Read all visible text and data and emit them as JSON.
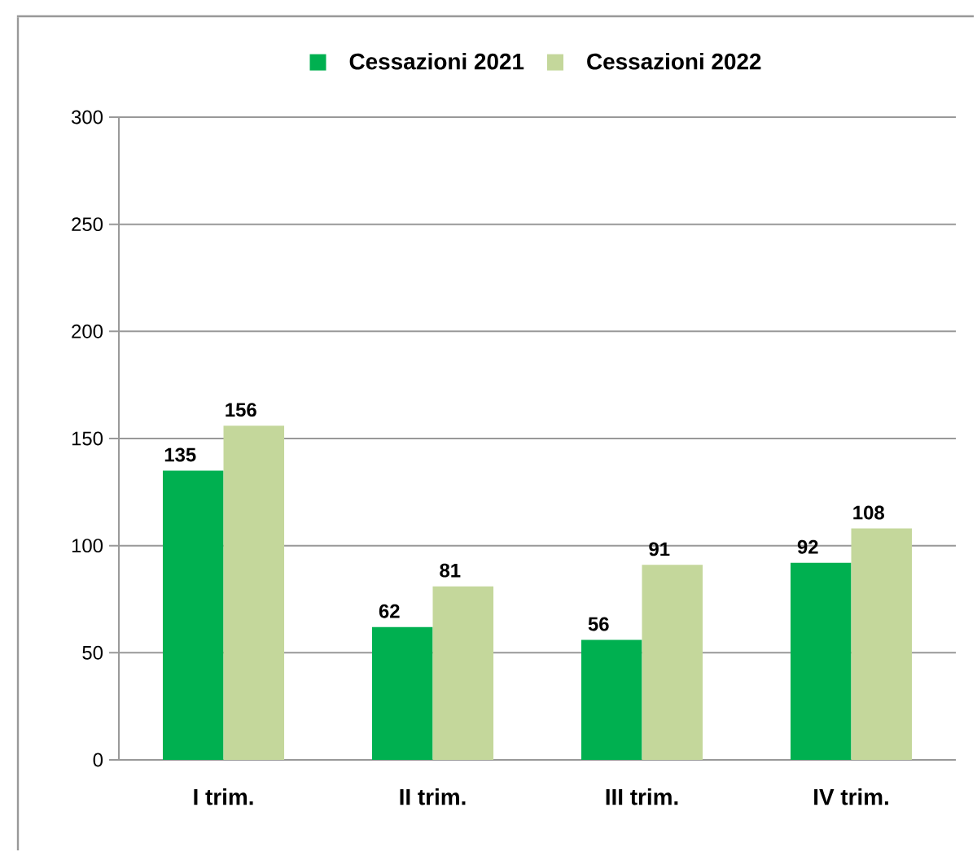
{
  "chart_data": {
    "type": "bar",
    "categories": [
      "I trim.",
      "II trim.",
      "III trim.",
      "IV trim."
    ],
    "series": [
      {
        "name": "Cessazioni 2021",
        "color": "#00b050",
        "values": [
          135,
          62,
          56,
          92
        ]
      },
      {
        "name": "Cessazioni 2022",
        "color": "#c4d79b",
        "values": [
          156,
          81,
          91,
          108
        ]
      }
    ],
    "ylim": [
      0,
      300
    ],
    "yticks": [
      0,
      50,
      100,
      150,
      200,
      250,
      300
    ],
    "grid": "y",
    "legend": "top",
    "data_labels": true
  }
}
